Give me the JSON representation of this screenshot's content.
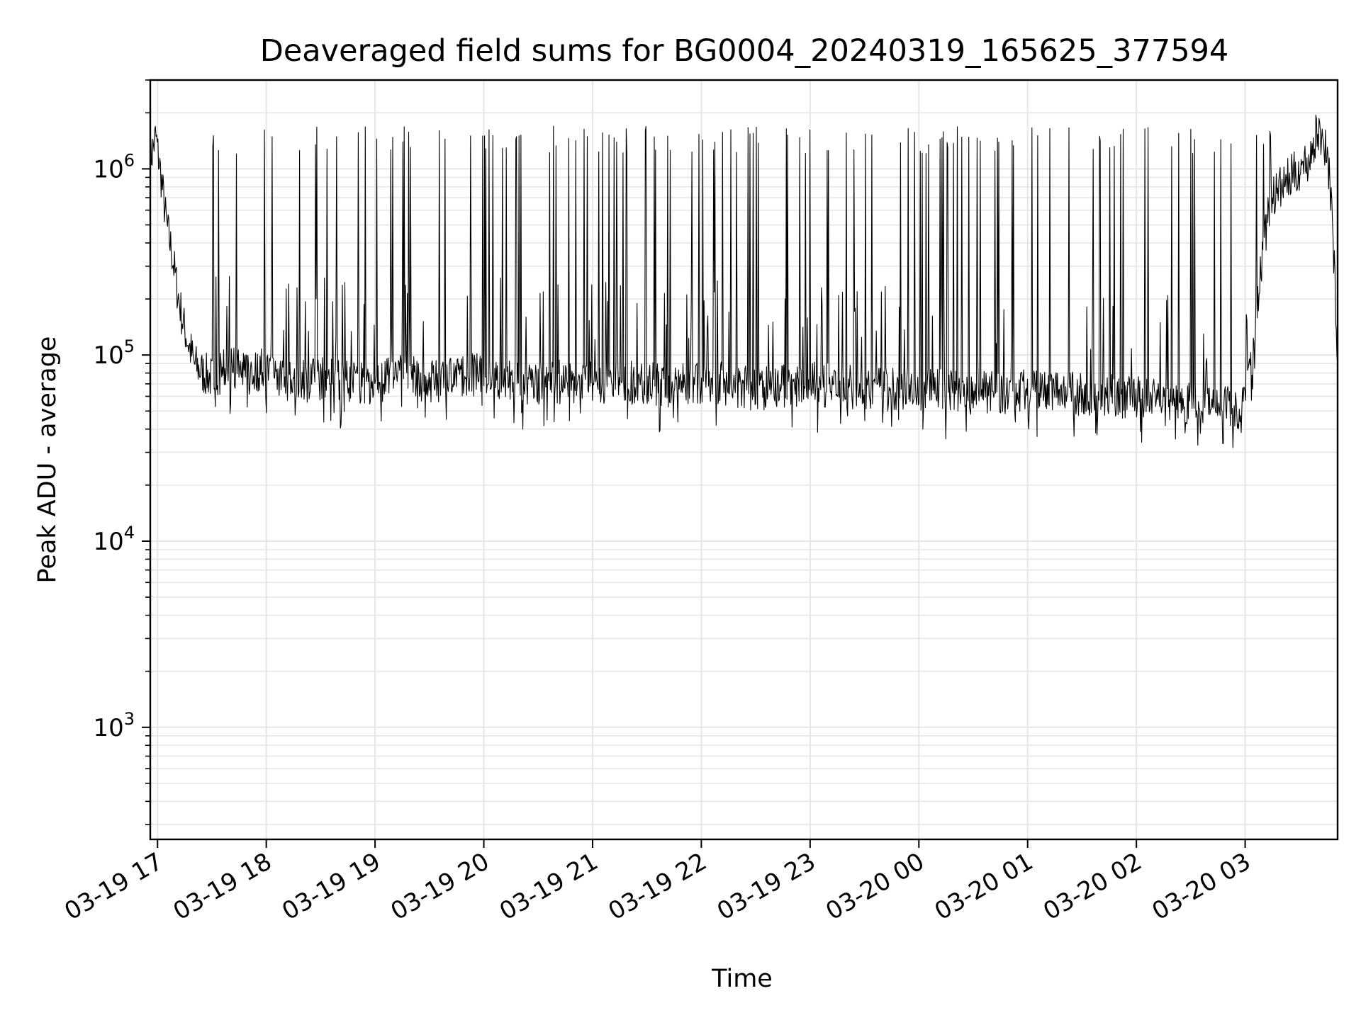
{
  "chart_data": {
    "type": "line",
    "title": "Deaveraged field sums for BG0004_20240319_165625_377594",
    "xlabel": "Time",
    "ylabel": "Peak ADU - average",
    "y_scale": "log",
    "ylim": [
      250,
      3000000
    ],
    "y_ticks": [
      {
        "value": 1000,
        "base": "10",
        "exp": "3"
      },
      {
        "value": 10000,
        "base": "10",
        "exp": "4"
      },
      {
        "value": 100000,
        "base": "10",
        "exp": "5"
      },
      {
        "value": 1000000,
        "base": "10",
        "exp": "6"
      }
    ],
    "xlim": [
      "2024-03-19 16:56",
      "2024-03-20 03:51"
    ],
    "x_ticks": [
      {
        "value": "2024-03-19 17:00",
        "label": "03-19 17"
      },
      {
        "value": "2024-03-19 18:00",
        "label": "03-19 18"
      },
      {
        "value": "2024-03-19 19:00",
        "label": "03-19 19"
      },
      {
        "value": "2024-03-19 20:00",
        "label": "03-19 20"
      },
      {
        "value": "2024-03-19 21:00",
        "label": "03-19 21"
      },
      {
        "value": "2024-03-19 22:00",
        "label": "03-19 22"
      },
      {
        "value": "2024-03-19 23:00",
        "label": "03-19 23"
      },
      {
        "value": "2024-03-20 00:00",
        "label": "03-20 00"
      },
      {
        "value": "2024-03-20 01:00",
        "label": "03-20 01"
      },
      {
        "value": "2024-03-20 02:00",
        "label": "03-20 02"
      },
      {
        "value": "2024-03-20 03:00",
        "label": "03-20 03"
      }
    ],
    "grid": true,
    "minor_grid": true,
    "line_color": "#000000",
    "grid_color": "#e6e6e6",
    "series": [
      {
        "x": [
          "2024-03-19 16:56",
          "2024-03-19 16:59",
          "2024-03-19 17:02",
          "2024-03-19 17:05",
          "2024-03-19 17:08",
          "2024-03-19 17:11",
          "2024-03-19 17:14",
          "2024-03-19 17:17",
          "2024-03-19 17:19",
          "2024-03-19 17:20",
          "2024-03-19 17:25",
          "2024-03-19 17:30",
          "2024-03-19 17:40",
          "2024-03-19 17:50",
          "2024-03-19 18:00",
          "2024-03-19 18:15",
          "2024-03-19 18:30",
          "2024-03-19 18:45",
          "2024-03-19 19:00",
          "2024-03-19 19:15",
          "2024-03-19 19:30",
          "2024-03-19 19:45",
          "2024-03-19 20:00",
          "2024-03-19 20:15",
          "2024-03-19 20:30",
          "2024-03-19 20:45",
          "2024-03-19 21:00",
          "2024-03-19 21:15",
          "2024-03-19 21:30",
          "2024-03-19 21:45",
          "2024-03-19 22:00",
          "2024-03-19 22:15",
          "2024-03-19 22:30",
          "2024-03-19 22:45",
          "2024-03-19 23:00",
          "2024-03-19 23:15",
          "2024-03-19 23:30",
          "2024-03-19 23:45",
          "2024-03-20 00:00",
          "2024-03-20 00:15",
          "2024-03-20 00:30",
          "2024-03-20 00:45",
          "2024-03-20 01:00",
          "2024-03-20 01:15",
          "2024-03-20 01:30",
          "2024-03-20 01:45",
          "2024-03-20 02:00",
          "2024-03-20 02:15",
          "2024-03-20 02:30",
          "2024-03-20 02:45",
          "2024-03-20 02:55",
          "2024-03-20 03:00",
          "2024-03-20 03:05",
          "2024-03-20 03:10",
          "2024-03-20 03:15",
          "2024-03-20 03:20",
          "2024-03-20 03:25",
          "2024-03-20 03:30",
          "2024-03-20 03:35",
          "2024-03-20 03:40",
          "2024-03-20 03:45",
          "2024-03-20 03:48",
          "2024-03-20 03:51"
        ],
        "y": [
          1100000,
          1500000,
          900000,
          500000,
          350000,
          220000,
          150000,
          115000,
          100000,
          90000,
          80000,
          75000,
          85000,
          80000,
          85000,
          70000,
          75000,
          72000,
          70000,
          78000,
          72000,
          75000,
          80000,
          72000,
          70000,
          72000,
          70000,
          72000,
          70000,
          68000,
          72000,
          70000,
          65000,
          68000,
          70000,
          68000,
          66000,
          65000,
          66000,
          64000,
          63000,
          62000,
          65000,
          62000,
          62000,
          60000,
          58000,
          60000,
          55000,
          58000,
          50000,
          60000,
          120000,
          400000,
          700000,
          800000,
          900000,
          1000000,
          1100000,
          1600000,
          1300000,
          600000,
          90000
        ]
      }
    ]
  }
}
